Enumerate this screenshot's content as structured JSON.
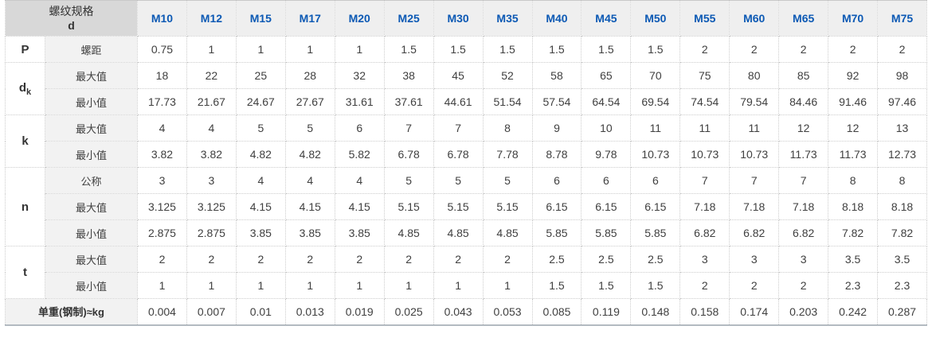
{
  "colors": {
    "header_text_blue": "#0c59b4",
    "corner_header_bg": "#d8d8d8",
    "column_header_bg": "#efefef",
    "row_label_bg": "#f2f2f2",
    "cell_border": "#cccccc",
    "body_text": "#404040"
  },
  "chart_data": {
    "type": "table",
    "corner_header": {
      "line1": "螺纹规格",
      "line2": "d"
    },
    "columns": [
      "M10",
      "M12",
      "M15",
      "M17",
      "M20",
      "M25",
      "M30",
      "M35",
      "M40",
      "M45",
      "M50",
      "M55",
      "M60",
      "M65",
      "M70",
      "M75"
    ],
    "groups": [
      {
        "param": "P",
        "param_sub": "",
        "footer": false,
        "rows": [
          {
            "label": "螺距",
            "values": [
              "0.75",
              "1",
              "1",
              "1",
              "1",
              "1.5",
              "1.5",
              "1.5",
              "1.5",
              "1.5",
              "1.5",
              "2",
              "2",
              "2",
              "2",
              "2"
            ]
          }
        ]
      },
      {
        "param": "d",
        "param_sub": "k",
        "footer": false,
        "rows": [
          {
            "label": "最大值",
            "values": [
              "18",
              "22",
              "25",
              "28",
              "32",
              "38",
              "45",
              "52",
              "58",
              "65",
              "70",
              "75",
              "80",
              "85",
              "92",
              "98"
            ]
          },
          {
            "label": "最小值",
            "values": [
              "17.73",
              "21.67",
              "24.67",
              "27.67",
              "31.61",
              "37.61",
              "44.61",
              "51.54",
              "57.54",
              "64.54",
              "69.54",
              "74.54",
              "79.54",
              "84.46",
              "91.46",
              "97.46"
            ]
          }
        ]
      },
      {
        "param": "k",
        "param_sub": "",
        "footer": false,
        "rows": [
          {
            "label": "最大值",
            "values": [
              "4",
              "4",
              "5",
              "5",
              "6",
              "7",
              "7",
              "8",
              "9",
              "10",
              "11",
              "11",
              "11",
              "12",
              "12",
              "13"
            ]
          },
          {
            "label": "最小值",
            "values": [
              "3.82",
              "3.82",
              "4.82",
              "4.82",
              "5.82",
              "6.78",
              "6.78",
              "7.78",
              "8.78",
              "9.78",
              "10.73",
              "10.73",
              "10.73",
              "11.73",
              "11.73",
              "12.73"
            ]
          }
        ]
      },
      {
        "param": "n",
        "param_sub": "",
        "footer": false,
        "rows": [
          {
            "label": "公称",
            "values": [
              "3",
              "3",
              "4",
              "4",
              "4",
              "5",
              "5",
              "5",
              "6",
              "6",
              "6",
              "7",
              "7",
              "7",
              "8",
              "8"
            ]
          },
          {
            "label": "最大值",
            "values": [
              "3.125",
              "3.125",
              "4.15",
              "4.15",
              "4.15",
              "5.15",
              "5.15",
              "5.15",
              "6.15",
              "6.15",
              "6.15",
              "7.18",
              "7.18",
              "7.18",
              "8.18",
              "8.18"
            ]
          },
          {
            "label": "最小值",
            "values": [
              "2.875",
              "2.875",
              "3.85",
              "3.85",
              "3.85",
              "4.85",
              "4.85",
              "4.85",
              "5.85",
              "5.85",
              "5.85",
              "6.82",
              "6.82",
              "6.82",
              "7.82",
              "7.82"
            ]
          }
        ]
      },
      {
        "param": "t",
        "param_sub": "",
        "footer": false,
        "rows": [
          {
            "label": "最大值",
            "values": [
              "2",
              "2",
              "2",
              "2",
              "2",
              "2",
              "2",
              "2",
              "2.5",
              "2.5",
              "2.5",
              "3",
              "3",
              "3",
              "3.5",
              "3.5"
            ]
          },
          {
            "label": "最小值",
            "values": [
              "1",
              "1",
              "1",
              "1",
              "1",
              "1",
              "1",
              "1",
              "1.5",
              "1.5",
              "1.5",
              "2",
              "2",
              "2",
              "2.3",
              "2.3"
            ]
          }
        ]
      },
      {
        "param": "",
        "param_sub": "",
        "footer": true,
        "rows": [
          {
            "label": "单重(钢制)≈kg",
            "values": [
              "0.004",
              "0.007",
              "0.01",
              "0.013",
              "0.019",
              "0.025",
              "0.043",
              "0.053",
              "0.085",
              "0.119",
              "0.148",
              "0.158",
              "0.174",
              "0.203",
              "0.242",
              "0.287"
            ]
          }
        ]
      }
    ]
  }
}
